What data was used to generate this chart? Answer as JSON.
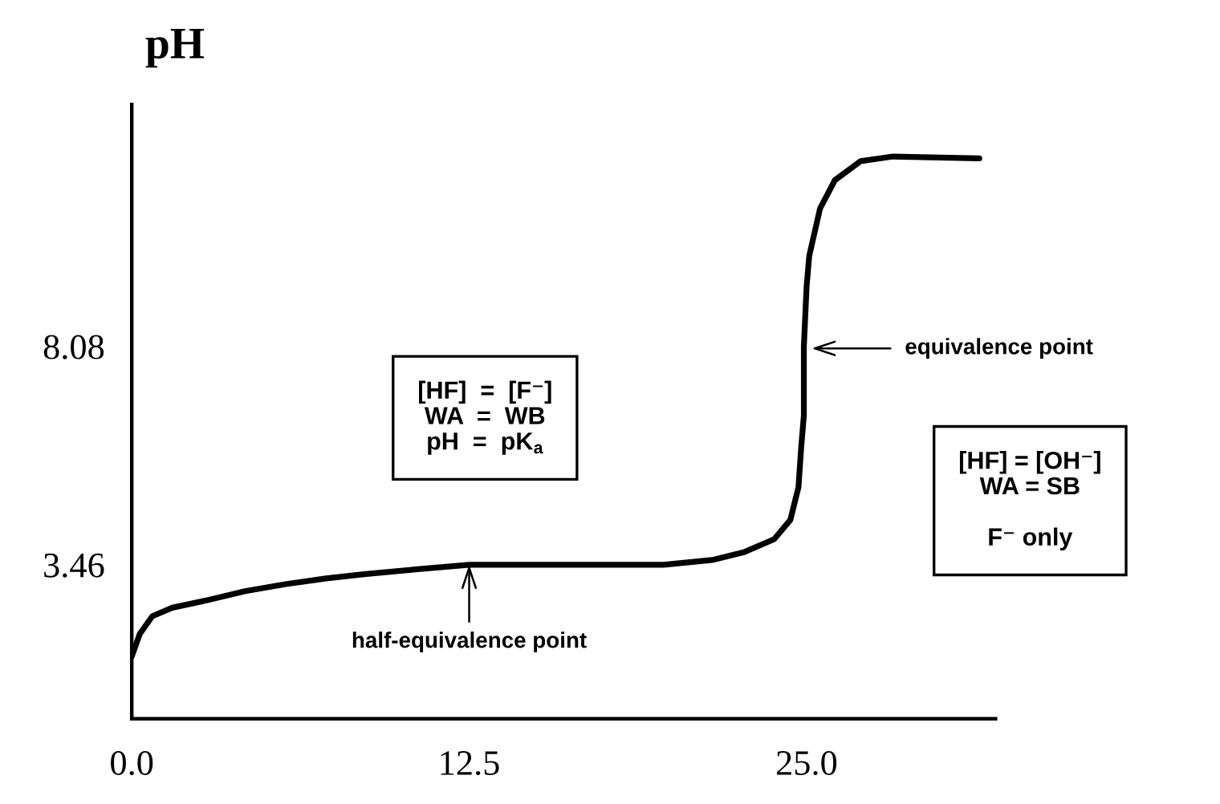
{
  "chart_data": {
    "type": "line",
    "ylabel": "pH",
    "x": [
      0,
      0.3,
      0.76,
      1.5,
      2.8,
      4.2,
      5.7,
      7.2,
      8.6,
      10.5,
      12.5,
      15,
      17.5,
      19.7,
      21.5,
      22.7,
      23.8,
      24.4,
      24.7,
      24.8,
      24.9,
      24.9,
      25.0,
      25.1,
      25.5,
      26.05,
      27.0,
      28.2,
      31.4
    ],
    "series": [
      {
        "color": "#000000",
        "values": [
          1.52,
          2.0,
          2.37,
          2.55,
          2.71,
          2.9,
          3.05,
          3.17,
          3.26,
          3.36,
          3.46,
          3.46,
          3.46,
          3.46,
          3.56,
          3.73,
          4.0,
          4.41,
          5.1,
          5.94,
          6.62,
          8.08,
          9.34,
          10.0,
          11.0,
          11.6,
          12.0,
          12.1,
          12.06
        ]
      }
    ],
    "xlim": [
      0,
      32
    ],
    "ylim": [
      0.2,
      13.2
    ],
    "xticks": [
      {
        "value": 0,
        "label": "0.0"
      },
      {
        "value": 12.5,
        "label": "12.5"
      },
      {
        "value": 25,
        "label": "25.0"
      }
    ],
    "yticks": [
      3.46,
      8.08
    ],
    "annotations": [
      {
        "text": "half-equivalence point",
        "x": 12.5,
        "y": 3.46
      },
      "equivalence point",
      "[HF]  =  [F⁻]\nWA  =  WB\npH  =  pK$_{a}$",
      "[HF] = [OH⁻]\nWA = SB\n\nF⁻ only"
    ],
    "grid": false,
    "legend": false,
    "marker": "none",
    "line_style": "solid"
  }
}
